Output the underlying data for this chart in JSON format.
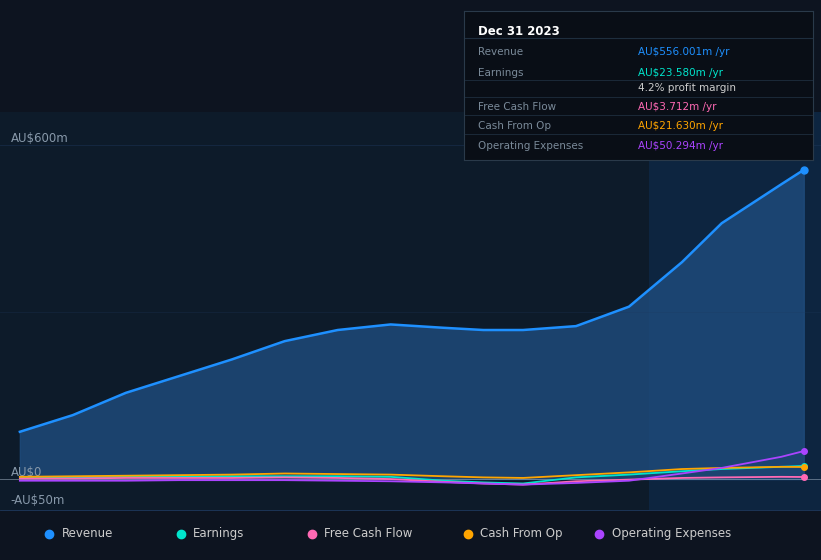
{
  "bg_color": "#0d1420",
  "chart_bg": "#0d1b2a",
  "grid_color": "#1e3a5f",
  "text_color": "#8899aa",
  "ylabel_600": "AU$600m",
  "ylabel_0": "AU$0",
  "ylabel_neg50": "-AU$50m",
  "ylim": [
    -65,
    660
  ],
  "years": [
    2018.0,
    2018.4,
    2018.8,
    2019.2,
    2019.6,
    2020.0,
    2020.4,
    2020.8,
    2021.2,
    2021.5,
    2021.8,
    2022.2,
    2022.6,
    2023.0,
    2023.3,
    2023.75,
    2023.92
  ],
  "revenue": [
    85,
    115,
    155,
    185,
    215,
    248,
    268,
    278,
    272,
    268,
    268,
    275,
    310,
    390,
    460,
    530,
    556
  ],
  "earnings": [
    2,
    3,
    4,
    4,
    5,
    5,
    5,
    4,
    -3,
    -6,
    -8,
    3,
    8,
    14,
    18,
    22,
    23.58
  ],
  "free_cash_flow": [
    1,
    1,
    2,
    2,
    2,
    3,
    2,
    0,
    -5,
    -8,
    -10,
    -4,
    -1,
    2,
    3,
    4,
    3.712
  ],
  "cash_from_op": [
    4,
    5,
    6,
    7,
    8,
    10,
    9,
    8,
    5,
    3,
    2,
    7,
    12,
    18,
    20,
    22,
    21.63
  ],
  "operating_exp": [
    -3,
    -3,
    -3,
    -2,
    -2,
    -2,
    -3,
    -4,
    -6,
    -8,
    -10,
    -7,
    -3,
    10,
    20,
    40,
    50.294
  ],
  "revenue_color": "#1e90ff",
  "revenue_fill_color": "#1e4a7a",
  "earnings_color": "#00e5cc",
  "free_cash_flow_color": "#ff69b4",
  "cash_from_op_color": "#ffa500",
  "operating_exp_color": "#aa44ff",
  "highlight_x_start": 2022.75,
  "highlight_x_end": 2024.05,
  "highlight_color": "#0d2540",
  "xticks": [
    2019,
    2020,
    2021,
    2022,
    2023
  ],
  "xlim": [
    2017.85,
    2024.05
  ],
  "tooltip": {
    "date": "Dec 31 2023",
    "rows": [
      {
        "label": "Revenue",
        "value": "AU$556.001m /yr",
        "label_color": "#7a8a99",
        "val_color": "#1e90ff",
        "is_title_row": false
      },
      {
        "label": "Earnings",
        "value": "AU$23.580m /yr",
        "label_color": "#7a8a99",
        "val_color": "#00e5cc",
        "is_title_row": false
      },
      {
        "label": "",
        "value": "4.2% profit margin",
        "label_color": "#7a8a99",
        "val_color": "#cccccc",
        "is_title_row": false
      },
      {
        "label": "Free Cash Flow",
        "value": "AU$3.712m /yr",
        "label_color": "#7a8a99",
        "val_color": "#ff69b4",
        "is_title_row": false
      },
      {
        "label": "Cash From Op",
        "value": "AU$21.630m /yr",
        "label_color": "#7a8a99",
        "val_color": "#ffa500",
        "is_title_row": false
      },
      {
        "label": "Operating Expenses",
        "value": "AU$50.294m /yr",
        "label_color": "#7a8a99",
        "val_color": "#aa44ff",
        "is_title_row": false
      }
    ],
    "bg_color": "#090e16",
    "border_color": "#2a3a4a",
    "title_color": "#ffffff",
    "sep_color": "#1e2e3e"
  },
  "legend": [
    {
      "label": "Revenue",
      "color": "#1e90ff"
    },
    {
      "label": "Earnings",
      "color": "#00e5cc"
    },
    {
      "label": "Free Cash Flow",
      "color": "#ff69b4"
    },
    {
      "label": "Cash From Op",
      "color": "#ffa500"
    },
    {
      "label": "Operating Expenses",
      "color": "#aa44ff"
    }
  ]
}
